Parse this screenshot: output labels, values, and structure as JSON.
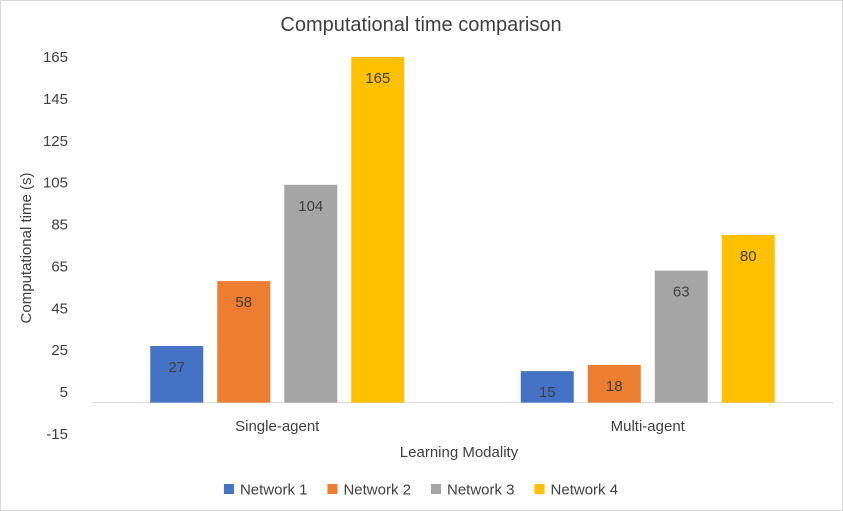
{
  "chart_data": {
    "type": "bar",
    "title": "Computational time comparison",
    "xlabel": "Learning Modality",
    "ylabel": "Computational time (s)",
    "categories": [
      "Single-agent",
      "Multi-agent"
    ],
    "ylim": [
      -15,
      165
    ],
    "yticks": [
      -15,
      5,
      25,
      45,
      65,
      85,
      105,
      125,
      145,
      165
    ],
    "baseline": 0,
    "grid": false,
    "legend_position": "bottom",
    "data_labels": true,
    "series": [
      {
        "name": "Network 1",
        "color": "#4472C4",
        "values": [
          27,
          15
        ]
      },
      {
        "name": "Network 2",
        "color": "#ED7D31",
        "values": [
          58,
          18
        ]
      },
      {
        "name": "Network 3",
        "color": "#A5A5A5",
        "values": [
          104,
          63
        ]
      },
      {
        "name": "Network 4",
        "color": "#FFC000",
        "values": [
          165,
          80
        ]
      }
    ]
  }
}
